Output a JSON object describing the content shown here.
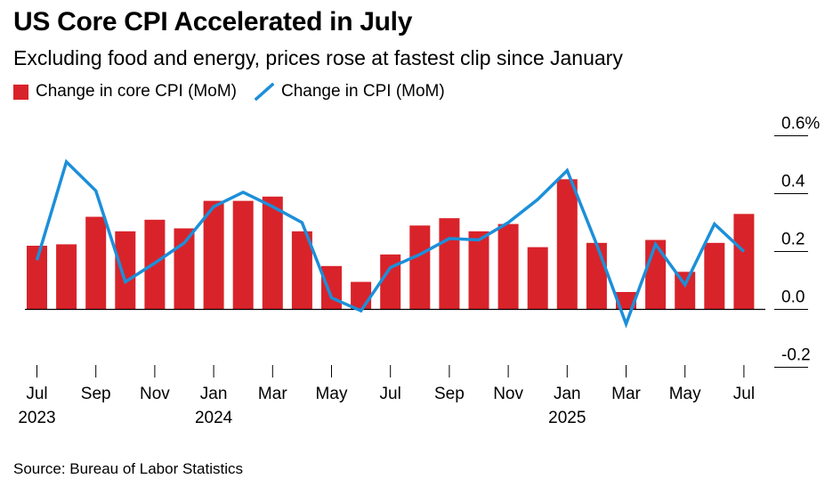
{
  "header": {
    "title": "US Core CPI Accelerated in July",
    "subtitle": "Excluding food and energy, prices rose at fastest clip since January"
  },
  "legend": {
    "bar_label": "Change in core CPI (MoM)",
    "line_label": "Change in CPI (MoM)"
  },
  "footer": {
    "source": "Source: Bureau of Labor Statistics"
  },
  "colors": {
    "bar": "#d9232a",
    "line": "#1c8fd9",
    "axis": "#000000"
  },
  "chart_data": {
    "type": "bar",
    "categories": [
      "2023-07",
      "2023-08",
      "2023-09",
      "2023-10",
      "2023-11",
      "2023-12",
      "2024-01",
      "2024-02",
      "2024-03",
      "2024-04",
      "2024-05",
      "2024-06",
      "2024-07",
      "2024-08",
      "2024-09",
      "2024-10",
      "2024-11",
      "2024-12",
      "2025-01",
      "2025-02",
      "2025-03",
      "2025-04",
      "2025-05",
      "2025-06",
      "2025-07"
    ],
    "series": [
      {
        "name": "Change in core CPI (MoM)",
        "type": "bar",
        "values": [
          0.22,
          0.225,
          0.32,
          0.27,
          0.31,
          0.28,
          0.375,
          0.375,
          0.39,
          0.27,
          0.15,
          0.095,
          0.19,
          0.29,
          0.315,
          0.27,
          0.295,
          0.215,
          0.45,
          0.23,
          0.06,
          0.24,
          0.13,
          0.23,
          0.33
        ]
      },
      {
        "name": "Change in CPI (MoM)",
        "type": "line",
        "values": [
          0.17,
          0.51,
          0.41,
          0.095,
          0.16,
          0.23,
          0.355,
          0.405,
          0.355,
          0.3,
          0.04,
          -0.005,
          0.145,
          0.19,
          0.245,
          0.24,
          0.3,
          0.38,
          0.48,
          0.225,
          -0.05,
          0.225,
          0.085,
          0.295,
          0.2
        ]
      }
    ],
    "y_ticks": [
      {
        "value": 0.6,
        "label": "0.6%"
      },
      {
        "value": 0.4,
        "label": "0.4"
      },
      {
        "value": 0.2,
        "label": "0.2"
      },
      {
        "value": 0.0,
        "label": "0.0"
      },
      {
        "value": -0.2,
        "label": "-0.2"
      }
    ],
    "x_ticks": [
      {
        "index": 0,
        "label": "Jul",
        "year": "2023"
      },
      {
        "index": 2,
        "label": "Sep"
      },
      {
        "index": 4,
        "label": "Nov"
      },
      {
        "index": 6,
        "label": "Jan",
        "year": "2024"
      },
      {
        "index": 8,
        "label": "Mar"
      },
      {
        "index": 10,
        "label": "May"
      },
      {
        "index": 12,
        "label": "Jul"
      },
      {
        "index": 14,
        "label": "Sep"
      },
      {
        "index": 16,
        "label": "Nov"
      },
      {
        "index": 18,
        "label": "Jan",
        "year": "2025"
      },
      {
        "index": 20,
        "label": "Mar"
      },
      {
        "index": 22,
        "label": "May"
      },
      {
        "index": 24,
        "label": "Jul"
      }
    ],
    "ylim": [
      -0.2,
      0.6
    ],
    "grid": false,
    "legend_position": "top-left",
    "y_axis_position": "right"
  }
}
